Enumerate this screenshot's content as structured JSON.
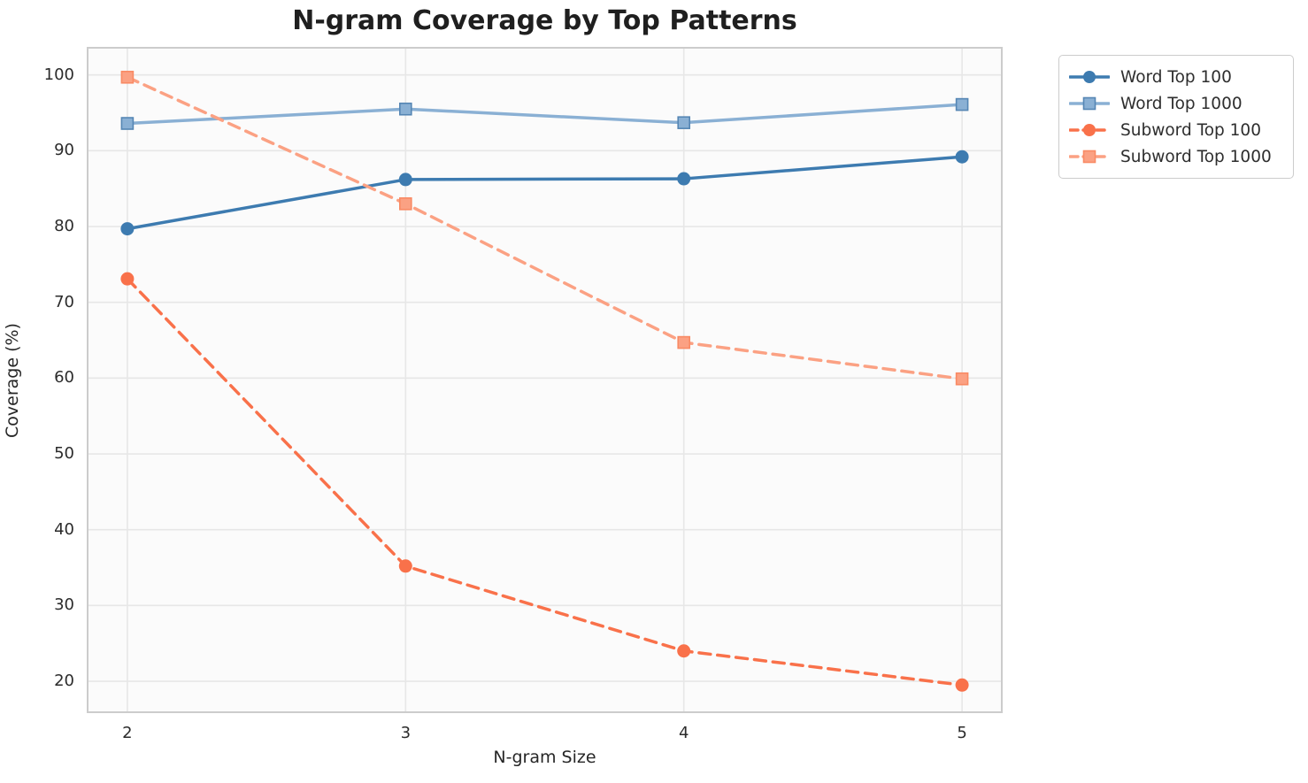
{
  "title": "N-gram Coverage by Top Patterns",
  "chart_data": {
    "type": "line",
    "title": "N-gram Coverage by Top Patterns",
    "xlabel": "N-gram Size",
    "ylabel": "Coverage (%)",
    "x": [
      2,
      3,
      4,
      5
    ],
    "xticks": [
      2,
      3,
      4,
      5
    ],
    "yticks": [
      20,
      30,
      40,
      50,
      60,
      70,
      80,
      90,
      100
    ],
    "xlim": [
      1.854,
      5.146
    ],
    "ylim": [
      15.8,
      103.7
    ],
    "grid": true,
    "legend_position": "outside-upper-right",
    "series": [
      {
        "name": "Word Top 100",
        "values": [
          79.7,
          86.2,
          86.3,
          89.2
        ],
        "color": "#3d7bb0",
        "edge_color": "#3d7bb0",
        "marker": "circle",
        "line_style": "solid"
      },
      {
        "name": "Word Top 1000",
        "values": [
          93.6,
          95.5,
          93.7,
          96.1
        ],
        "color": "#8ab0d4",
        "edge_color": "#5586b4",
        "marker": "square",
        "line_style": "solid"
      },
      {
        "name": "Subword Top 100",
        "values": [
          73.1,
          35.2,
          24.0,
          19.5
        ],
        "color": "#f9714a",
        "edge_color": "#f9714a",
        "marker": "circle",
        "line_style": "dashed"
      },
      {
        "name": "Subword Top 1000",
        "values": [
          99.7,
          83.0,
          64.7,
          59.9
        ],
        "color": "#fba183",
        "edge_color": "#f98a64",
        "marker": "square",
        "line_style": "dashed"
      }
    ]
  },
  "style": {
    "grid_color": "#e7e7e7",
    "spine_color": "#cccccc",
    "plot_bg": "#fbfbfb",
    "tick_color": "#2b2b2b"
  }
}
